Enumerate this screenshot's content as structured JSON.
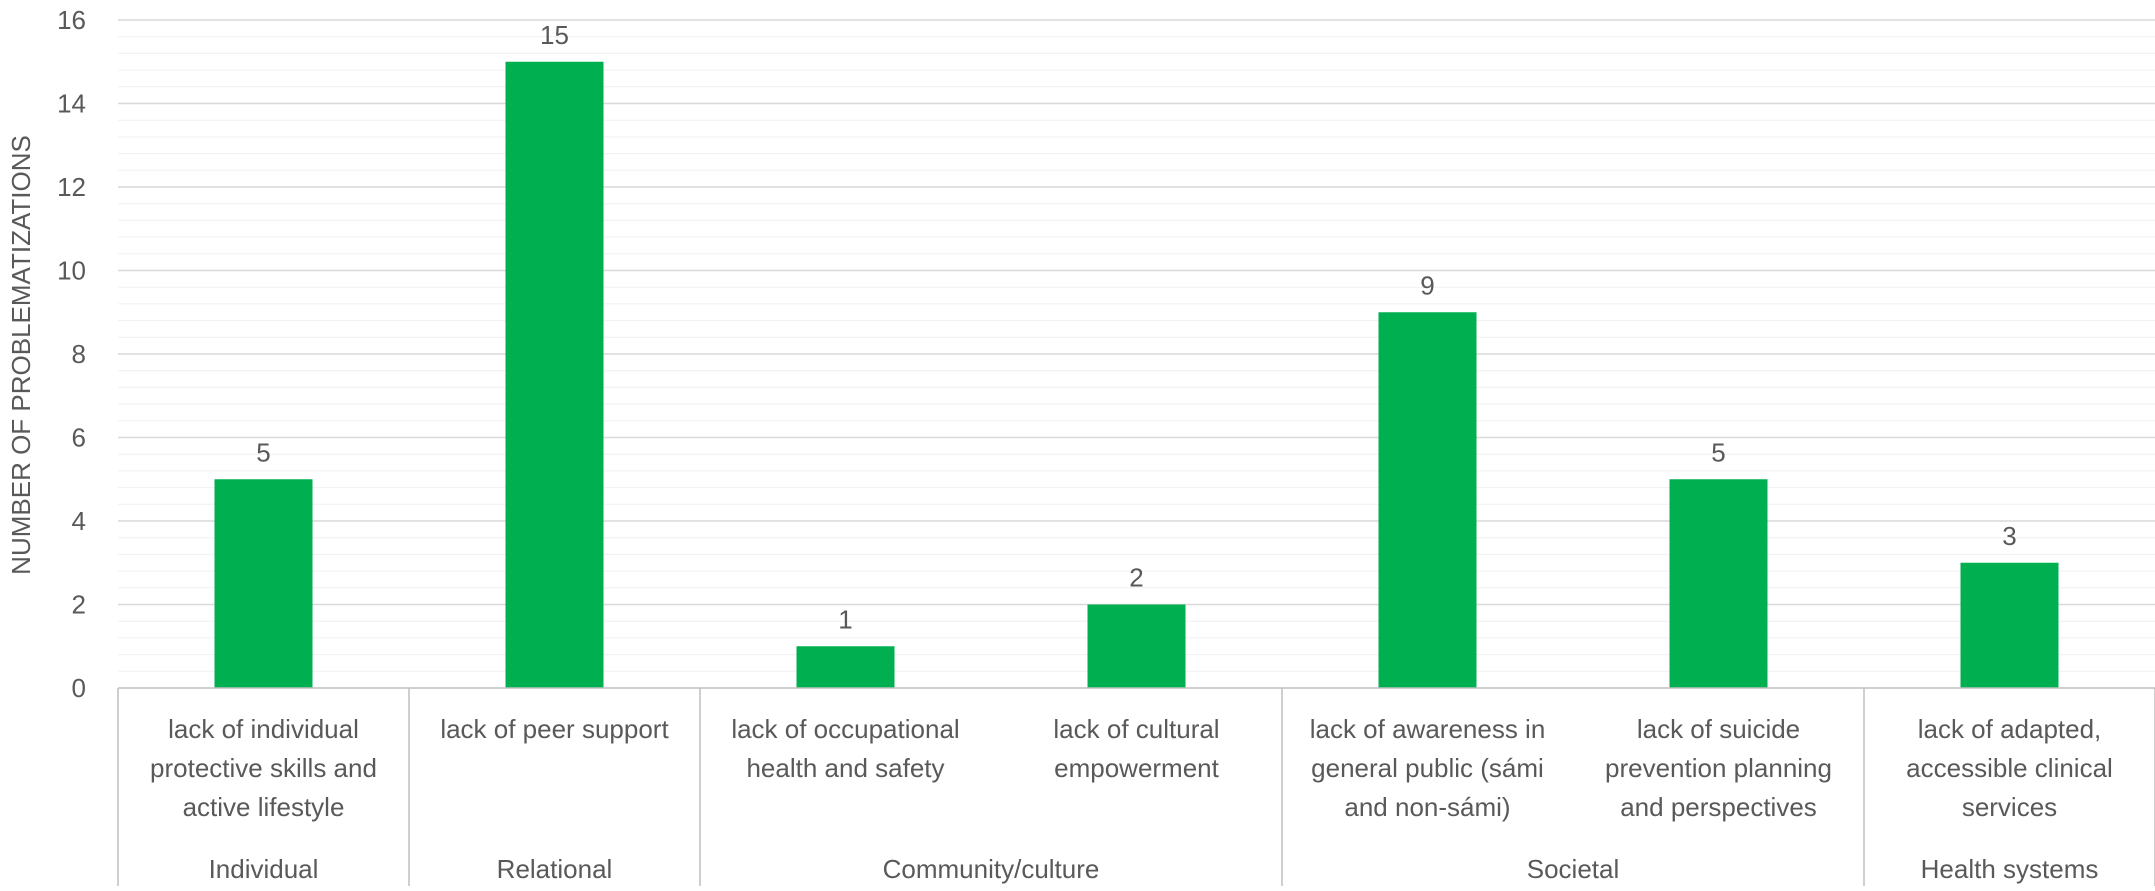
{
  "chart_data": {
    "type": "bar",
    "title": "",
    "ylabel": "NUMBER OF PROBLEMATIZATIONS",
    "xlabel": "",
    "ylim": [
      0,
      16
    ],
    "yticks": [
      0,
      2,
      4,
      6,
      8,
      10,
      12,
      14,
      16
    ],
    "minor_grid_step": 0.4,
    "grid": true,
    "legend": "none",
    "bar_color": "#00B050",
    "categories": [
      {
        "label": [
          "lack of individual",
          "protective skills and",
          "active lifestyle"
        ],
        "group": "Individual",
        "value": 5
      },
      {
        "label": [
          "lack of peer support"
        ],
        "group": "Relational",
        "value": 15
      },
      {
        "label": [
          "lack of occupational",
          "health and safety"
        ],
        "group": "Community/culture",
        "value": 1
      },
      {
        "label": [
          "lack of cultural",
          "empowerment"
        ],
        "group": "Community/culture",
        "value": 2
      },
      {
        "label": [
          "lack of  awareness in",
          "general public (sámi",
          "and non-sámi)"
        ],
        "group": "Societal",
        "value": 9
      },
      {
        "label": [
          "lack of suicide",
          "prevention planning",
          "and perspectives"
        ],
        "group": "Societal",
        "value": 5
      },
      {
        "label": [
          "lack of adapted,",
          "accessible clinical",
          "services"
        ],
        "group": "Health systems",
        "value": 3
      }
    ],
    "groups": [
      {
        "name": "Individual",
        "count": 1
      },
      {
        "name": "Relational",
        "count": 1
      },
      {
        "name": "Community/culture",
        "count": 2
      },
      {
        "name": "Societal",
        "count": 2
      },
      {
        "name": "Health systems",
        "count": 1
      }
    ],
    "data_labels": true
  }
}
